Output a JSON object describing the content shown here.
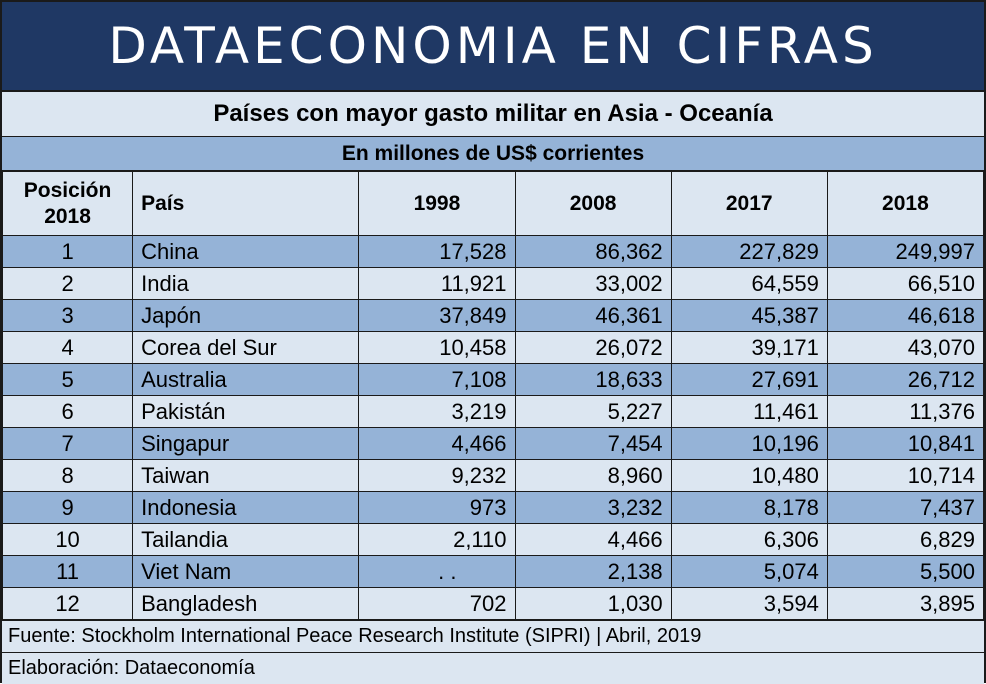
{
  "banner": {
    "title": "DATAECONOMIA EN CIFRAS"
  },
  "table": {
    "title": "Países con mayor gasto militar en Asia - Oceanía",
    "subtitle": "En millones de US$ corrientes",
    "headers": {
      "position_line1": "Posición",
      "position_line2": "2018",
      "country": "País",
      "y1998": "1998",
      "y2008": "2008",
      "y2017": "2017",
      "y2018": "2018"
    },
    "rows": [
      {
        "pos": "1",
        "country": "China",
        "y1998": "17,528",
        "y2008": "86,362",
        "y2017": "227,829",
        "y2018": "249,997"
      },
      {
        "pos": "2",
        "country": "India",
        "y1998": "11,921",
        "y2008": "33,002",
        "y2017": "64,559",
        "y2018": "66,510"
      },
      {
        "pos": "3",
        "country": "Japón",
        "y1998": "37,849",
        "y2008": "46,361",
        "y2017": "45,387",
        "y2018": "46,618"
      },
      {
        "pos": "4",
        "country": "Corea del Sur",
        "y1998": "10,458",
        "y2008": "26,072",
        "y2017": "39,171",
        "y2018": "43,070"
      },
      {
        "pos": "5",
        "country": "Australia",
        "y1998": "7,108",
        "y2008": "18,633",
        "y2017": "27,691",
        "y2018": "26,712"
      },
      {
        "pos": "6",
        "country": "Pakistán",
        "y1998": "3,219",
        "y2008": "5,227",
        "y2017": "11,461",
        "y2018": "11,376"
      },
      {
        "pos": "7",
        "country": "Singapur",
        "y1998": "4,466",
        "y2008": "7,454",
        "y2017": "10,196",
        "y2018": "10,841"
      },
      {
        "pos": "8",
        "country": "Taiwan",
        "y1998": "9,232",
        "y2008": "8,960",
        "y2017": "10,480",
        "y2018": "10,714"
      },
      {
        "pos": "9",
        "country": "Indonesia",
        "y1998": "973",
        "y2008": "3,232",
        "y2017": "8,178",
        "y2018": "7,437"
      },
      {
        "pos": "10",
        "country": "Tailandia",
        "y1998": "2,110",
        "y2008": "4,466",
        "y2017": "6,306",
        "y2018": "6,829"
      },
      {
        "pos": "11",
        "country": "Viet Nam",
        "y1998": ". .",
        "y2008": "2,138",
        "y2017": "5,074",
        "y2018": "5,500"
      },
      {
        "pos": "12",
        "country": "Bangladesh",
        "y1998": "702",
        "y2008": "1,030",
        "y2017": "3,594",
        "y2018": "3,895"
      }
    ]
  },
  "footer": {
    "source": "Fuente: Stockholm International Peace Research Institute (SIPRI) | Abril, 2019",
    "credit": "Elaboración: Dataeconomía"
  },
  "colors": {
    "banner_bg": "#1f3864",
    "row_dark": "#95b3d7",
    "row_light": "#dce6f1"
  }
}
